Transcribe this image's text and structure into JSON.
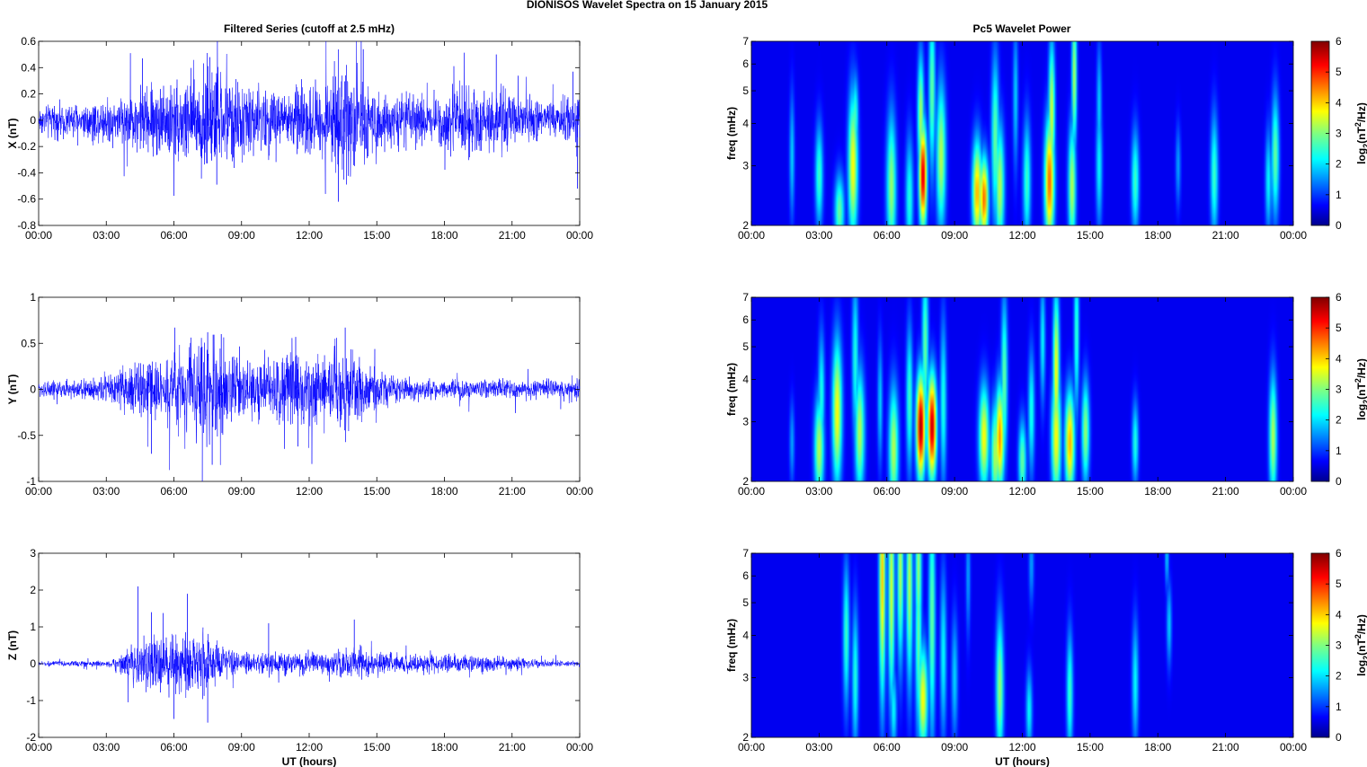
{
  "figure": {
    "suptitle": "DIONISOS Wavelet Spectra on 15 January   2015",
    "left_title": "Filtered Series (cutoff at 2.5 mHz)",
    "right_title": "Pc5 Wavelet Power",
    "colormap": "jet",
    "line_color": "#0000ff"
  },
  "chart_data": [
    {
      "type": "line",
      "xlabel": "",
      "ylabel": "X (nT)",
      "xlim": [
        0,
        24
      ],
      "ylim": [
        -0.8,
        0.6
      ],
      "x_ticks": [
        "00:00",
        "03:00",
        "06:00",
        "09:00",
        "12:00",
        "15:00",
        "18:00",
        "21:00",
        "00:00"
      ],
      "y_ticks": [
        -0.8,
        -0.6,
        -0.4,
        -0.2,
        0,
        0.2,
        0.4,
        0.6
      ],
      "y_tick_labels": [
        "-0.8",
        "-0.6",
        "-0.4",
        "-0.2",
        "0",
        "0.2",
        "0.4",
        "0.6"
      ],
      "envelope": {
        "hours": [
          0,
          1,
          2,
          3,
          4,
          5,
          6,
          7,
          7.5,
          8,
          9,
          10,
          11,
          12,
          13,
          13.5,
          14,
          14.5,
          15,
          16,
          17,
          18,
          19,
          20,
          21,
          22,
          23,
          24
        ],
        "amplitude": [
          0.08,
          0.09,
          0.1,
          0.12,
          0.15,
          0.2,
          0.22,
          0.28,
          0.33,
          0.26,
          0.2,
          0.18,
          0.16,
          0.2,
          0.22,
          0.3,
          0.3,
          0.22,
          0.16,
          0.14,
          0.13,
          0.16,
          0.2,
          0.18,
          0.15,
          0.12,
          0.1,
          0.14
        ]
      },
      "peaks": [
        [
          7.6,
          0.48
        ],
        [
          7.9,
          -0.49
        ],
        [
          13.3,
          -0.62
        ],
        [
          14.4,
          0.54
        ],
        [
          20.3,
          0.5
        ],
        [
          23.9,
          -0.52
        ],
        [
          4.6,
          0.47
        ],
        [
          23.7,
          0.37
        ]
      ]
    },
    {
      "type": "line",
      "xlabel": "",
      "ylabel": "Y (nT)",
      "xlim": [
        0,
        24
      ],
      "ylim": [
        -1,
        1
      ],
      "x_ticks": [
        "00:00",
        "03:00",
        "06:00",
        "09:00",
        "12:00",
        "15:00",
        "18:00",
        "21:00",
        "00:00"
      ],
      "y_ticks": [
        -1,
        -0.5,
        0,
        0.5,
        1
      ],
      "y_tick_labels": [
        "-1",
        "-0.5",
        "0",
        "0.5",
        "1"
      ],
      "envelope": {
        "hours": [
          0,
          1,
          2,
          3,
          4,
          5,
          6,
          7,
          7.5,
          8,
          9,
          10,
          11,
          12,
          13,
          13.5,
          14,
          15,
          16,
          17,
          18,
          19,
          20,
          21,
          22,
          23,
          24
        ],
        "amplitude": [
          0.07,
          0.07,
          0.08,
          0.12,
          0.18,
          0.22,
          0.28,
          0.38,
          0.45,
          0.35,
          0.22,
          0.25,
          0.3,
          0.25,
          0.3,
          0.35,
          0.3,
          0.15,
          0.1,
          0.08,
          0.08,
          0.08,
          0.07,
          0.07,
          0.07,
          0.07,
          0.1
        ]
      },
      "peaks": [
        [
          7.7,
          -0.82
        ],
        [
          7.5,
          0.62
        ],
        [
          13.6,
          0.67
        ],
        [
          11.4,
          0.57
        ],
        [
          5.0,
          -0.7
        ],
        [
          8.1,
          0.6
        ],
        [
          11.5,
          -0.62
        ]
      ]
    },
    {
      "type": "line",
      "xlabel": "UT (hours)",
      "ylabel": "Z (nT)",
      "xlim": [
        0,
        24
      ],
      "ylim": [
        -2,
        3
      ],
      "x_ticks": [
        "00:00",
        "03:00",
        "06:00",
        "09:00",
        "12:00",
        "15:00",
        "18:00",
        "21:00",
        "00:00"
      ],
      "y_ticks": [
        -2,
        -1,
        0,
        1,
        2,
        3
      ],
      "y_tick_labels": [
        "-2",
        "-1",
        "0",
        "1",
        "2",
        "3"
      ],
      "envelope": {
        "hours": [
          0,
          1,
          2,
          3,
          3.5,
          4,
          5,
          6,
          7,
          8,
          9,
          10,
          11,
          12,
          13,
          14,
          15,
          16,
          17,
          18,
          19,
          20,
          21,
          22,
          23,
          24
        ],
        "amplitude": [
          0.05,
          0.05,
          0.06,
          0.06,
          0.1,
          0.35,
          0.5,
          0.6,
          0.65,
          0.4,
          0.2,
          0.2,
          0.25,
          0.2,
          0.3,
          0.3,
          0.25,
          0.2,
          0.2,
          0.18,
          0.2,
          0.15,
          0.12,
          0.08,
          0.06,
          0.06
        ]
      },
      "peaks": [
        [
          4.4,
          2.1
        ],
        [
          6.6,
          1.9
        ],
        [
          7.5,
          -1.6
        ],
        [
          6.0,
          -1.5
        ],
        [
          5.0,
          1.4
        ],
        [
          14.0,
          1.2
        ],
        [
          10.2,
          1.1
        ]
      ]
    },
    {
      "type": "heatmap",
      "xlabel": "",
      "ylabel": "freq (mHz)",
      "colorbar_label": "log2(nT2/Hz)",
      "colorbar_label_base": "log",
      "colorbar_label_sub": "2",
      "colorbar_label_mid": "(nT",
      "colorbar_label_sup": "2",
      "colorbar_label_end": "/Hz)",
      "xlim": [
        0,
        24
      ],
      "ylim": [
        2,
        7
      ],
      "yscale": "log",
      "clim": [
        0,
        6
      ],
      "x_ticks": [
        "00:00",
        "03:00",
        "06:00",
        "09:00",
        "12:00",
        "15:00",
        "18:00",
        "21:00",
        "00:00"
      ],
      "y_ticks": [
        2,
        3,
        4,
        5,
        6,
        7
      ],
      "y_tick_labels": [
        "2",
        "3",
        "4",
        "5",
        "6",
        "7"
      ],
      "c_ticks": [
        "0",
        "1",
        "2",
        "3",
        "4",
        "5",
        "6"
      ],
      "blobs": [
        [
          1.8,
          3.2,
          0.08,
          0.3,
          1.5
        ],
        [
          3.0,
          2.8,
          0.12,
          0.25,
          2.2
        ],
        [
          3.9,
          2.2,
          0.15,
          0.18,
          2.5
        ],
        [
          4.5,
          3.0,
          0.15,
          0.35,
          3.5
        ],
        [
          4.6,
          4.2,
          0.1,
          0.2,
          2.2
        ],
        [
          6.2,
          2.6,
          0.15,
          0.35,
          2.8
        ],
        [
          7.0,
          2.4,
          0.12,
          0.3,
          2.0
        ],
        [
          7.6,
          2.8,
          0.12,
          0.25,
          5.5
        ],
        [
          7.5,
          4.2,
          0.1,
          0.3,
          3.0
        ],
        [
          8.0,
          5.0,
          0.1,
          0.4,
          2.5
        ],
        [
          8.4,
          3.2,
          0.15,
          0.35,
          3.0
        ],
        [
          10.0,
          2.5,
          0.15,
          0.25,
          4.0
        ],
        [
          10.3,
          2.4,
          0.14,
          0.2,
          4.5
        ],
        [
          10.8,
          3.6,
          0.12,
          0.4,
          2.5
        ],
        [
          11.0,
          2.6,
          0.14,
          0.3,
          3.0
        ],
        [
          12.2,
          2.7,
          0.12,
          0.3,
          2.2
        ],
        [
          13.2,
          2.7,
          0.15,
          0.3,
          4.5
        ],
        [
          13.3,
          4.3,
          0.1,
          0.35,
          3.2
        ],
        [
          14.2,
          2.6,
          0.12,
          0.3,
          3.0
        ],
        [
          14.3,
          5.5,
          0.08,
          0.35,
          3.0
        ],
        [
          15.4,
          3.0,
          0.1,
          0.3,
          1.8
        ],
        [
          17.0,
          2.7,
          0.12,
          0.25,
          2.2
        ],
        [
          18.9,
          3.0,
          0.08,
          0.2,
          1.2
        ],
        [
          20.5,
          2.8,
          0.12,
          0.3,
          2.2
        ],
        [
          22.9,
          2.7,
          0.1,
          0.25,
          1.8
        ],
        [
          23.2,
          3.2,
          0.12,
          0.3,
          2.5
        ],
        [
          15.4,
          4.5,
          0.08,
          0.3,
          1.5
        ],
        [
          11.7,
          4.8,
          0.08,
          0.35,
          1.5
        ]
      ]
    },
    {
      "type": "heatmap",
      "xlabel": "",
      "ylabel": "freq (mHz)",
      "colorbar_label": "log2(nT2/Hz)",
      "colorbar_label_base": "log",
      "colorbar_label_sub": "2",
      "colorbar_label_mid": "(nT",
      "colorbar_label_sup": "2",
      "colorbar_label_end": "/Hz)",
      "xlim": [
        0,
        24
      ],
      "ylim": [
        2,
        7
      ],
      "yscale": "log",
      "clim": [
        0,
        6
      ],
      "x_ticks": [
        "00:00",
        "03:00",
        "06:00",
        "09:00",
        "12:00",
        "15:00",
        "18:00",
        "21:00",
        "00:00"
      ],
      "y_ticks": [
        2,
        3,
        4,
        5,
        6,
        7
      ],
      "y_tick_labels": [
        "2",
        "3",
        "4",
        "5",
        "6",
        "7"
      ],
      "c_ticks": [
        "0",
        "1",
        "2",
        "3",
        "4",
        "5",
        "6"
      ],
      "blobs": [
        [
          1.8,
          2.6,
          0.08,
          0.2,
          1.2
        ],
        [
          3.0,
          2.5,
          0.15,
          0.25,
          3.0
        ],
        [
          3.1,
          3.6,
          0.1,
          0.3,
          2.0
        ],
        [
          3.8,
          3.2,
          0.15,
          0.35,
          3.5
        ],
        [
          4.8,
          2.8,
          0.15,
          0.3,
          3.0
        ],
        [
          4.6,
          4.6,
          0.1,
          0.4,
          2.0
        ],
        [
          6.3,
          2.5,
          0.15,
          0.3,
          3.0
        ],
        [
          7.0,
          3.5,
          0.1,
          0.35,
          2.2
        ],
        [
          7.5,
          2.9,
          0.14,
          0.25,
          5.8
        ],
        [
          8.0,
          2.9,
          0.14,
          0.25,
          5.6
        ],
        [
          7.7,
          5.0,
          0.1,
          0.4,
          2.5
        ],
        [
          8.5,
          3.4,
          0.1,
          0.4,
          2.0
        ],
        [
          10.3,
          2.7,
          0.16,
          0.25,
          3.5
        ],
        [
          10.8,
          2.4,
          0.14,
          0.25,
          3.0
        ],
        [
          11.0,
          2.7,
          0.14,
          0.25,
          4.2
        ],
        [
          11.2,
          4.0,
          0.1,
          0.4,
          2.5
        ],
        [
          12.0,
          2.3,
          0.12,
          0.2,
          2.5
        ],
        [
          12.4,
          3.2,
          0.1,
          0.3,
          2.0
        ],
        [
          13.5,
          2.7,
          0.15,
          0.3,
          3.5
        ],
        [
          13.5,
          4.2,
          0.1,
          0.4,
          3.5
        ],
        [
          14.1,
          2.6,
          0.15,
          0.25,
          4.0
        ],
        [
          14.8,
          2.8,
          0.12,
          0.25,
          2.8
        ],
        [
          14.4,
          5.5,
          0.08,
          0.4,
          2.2
        ],
        [
          17.0,
          2.6,
          0.1,
          0.2,
          2.0
        ],
        [
          23.1,
          2.7,
          0.12,
          0.3,
          3.0
        ],
        [
          12.9,
          5.2,
          0.08,
          0.3,
          1.8
        ],
        [
          5.7,
          3.4,
          0.08,
          0.3,
          1.5
        ]
      ]
    },
    {
      "type": "heatmap",
      "xlabel": "UT (hours)",
      "ylabel": "freq (mHz)",
      "colorbar_label": "log2(nT2/Hz)",
      "colorbar_label_base": "log",
      "colorbar_label_sub": "2",
      "colorbar_label_mid": "(nT",
      "colorbar_label_sup": "2",
      "colorbar_label_end": "/Hz)",
      "xlim": [
        0,
        24
      ],
      "ylim": [
        2,
        7
      ],
      "yscale": "log",
      "clim": [
        0,
        6
      ],
      "x_ticks": [
        "00:00",
        "03:00",
        "06:00",
        "09:00",
        "12:00",
        "15:00",
        "18:00",
        "21:00",
        "00:00"
      ],
      "y_ticks": [
        2,
        3,
        4,
        5,
        6,
        7
      ],
      "y_tick_labels": [
        "2",
        "3",
        "4",
        "5",
        "6",
        "7"
      ],
      "c_ticks": [
        "0",
        "1",
        "2",
        "3",
        "4",
        "5",
        "6"
      ],
      "blobs": [
        [
          4.2,
          4.0,
          0.1,
          0.35,
          2.2
        ],
        [
          4.6,
          3.0,
          0.1,
          0.35,
          2.0
        ],
        [
          5.8,
          6.0,
          0.1,
          0.6,
          3.8
        ],
        [
          6.2,
          5.5,
          0.1,
          0.55,
          3.2
        ],
        [
          6.6,
          6.3,
          0.1,
          0.45,
          3.0
        ],
        [
          7.0,
          5.8,
          0.1,
          0.5,
          3.0
        ],
        [
          7.4,
          6.4,
          0.1,
          0.45,
          2.8
        ],
        [
          7.6,
          2.6,
          0.15,
          0.25,
          3.5
        ],
        [
          7.4,
          4.0,
          0.1,
          0.5,
          2.5
        ],
        [
          8.0,
          4.5,
          0.1,
          0.6,
          2.5
        ],
        [
          8.5,
          3.5,
          0.1,
          0.4,
          1.8
        ],
        [
          6.3,
          2.4,
          0.1,
          0.2,
          1.8
        ],
        [
          9.6,
          6.0,
          0.07,
          0.3,
          1.2
        ],
        [
          11.0,
          2.8,
          0.12,
          0.35,
          2.8
        ],
        [
          12.3,
          2.4,
          0.1,
          0.2,
          1.8
        ],
        [
          12.4,
          6.5,
          0.08,
          0.2,
          1.2
        ],
        [
          14.1,
          2.7,
          0.1,
          0.3,
          2.2
        ],
        [
          17.0,
          2.9,
          0.1,
          0.3,
          1.8
        ],
        [
          18.5,
          4.3,
          0.08,
          0.2,
          1.5
        ],
        [
          18.4,
          6.8,
          0.06,
          0.15,
          1.5
        ],
        [
          9.0,
          3.0,
          0.1,
          0.3,
          1.5
        ]
      ]
    }
  ]
}
